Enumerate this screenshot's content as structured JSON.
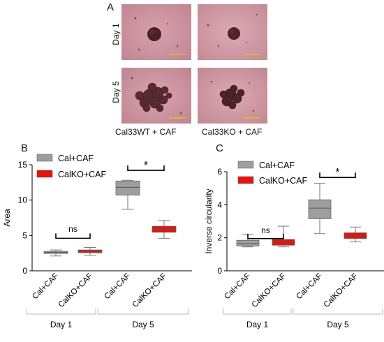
{
  "panels": {
    "a": "A",
    "b": "B",
    "c": "C"
  },
  "micrographs": {
    "row_labels": [
      "Day 1",
      "Day 5"
    ],
    "column_labels": [
      "Cal33WT + CAF",
      "Cal33KO + CAF"
    ]
  },
  "colors": {
    "wt": "#9e9e9e",
    "ko": "#e8120c",
    "micro_bg": "#c98f9b",
    "spheroid": "#4a2127",
    "scale_bar": "#e0c020"
  },
  "chart_data": [
    {
      "type": "box",
      "panel": "B",
      "ylabel": "Area",
      "ylim": [
        0,
        15
      ],
      "yticks": [
        0,
        5,
        10,
        15
      ],
      "legend": [
        "Cal+CAF",
        "CalKO+CAF"
      ],
      "legend_position": "top-left",
      "categories": [
        "Cal+CAF",
        "CalKO+CAF",
        "Cal+CAF",
        "CalKO+CAF"
      ],
      "groups": [
        "Day 1",
        "Day 5"
      ],
      "boxes": [
        {
          "series": "Cal+CAF",
          "group": "Day 1",
          "min": 2.1,
          "q1": 2.45,
          "median": 2.6,
          "q3": 2.75,
          "max": 2.95
        },
        {
          "series": "CalKO+CAF",
          "group": "Day 1",
          "min": 2.2,
          "q1": 2.55,
          "median": 2.75,
          "q3": 2.95,
          "max": 3.3
        },
        {
          "series": "Cal+CAF",
          "group": "Day 5",
          "min": 8.7,
          "q1": 10.7,
          "median": 11.8,
          "q3": 12.7,
          "max": 12.8
        },
        {
          "series": "CalKO+CAF",
          "group": "Day 5",
          "min": 4.6,
          "q1": 5.45,
          "median": 5.9,
          "q3": 6.3,
          "max": 7.1
        }
      ],
      "annotations": [
        {
          "text": "ns",
          "left": 0,
          "right": 1,
          "y": 4.6,
          "label_y": 5.9
        },
        {
          "text": "*",
          "left": 2,
          "right": 3,
          "y": 14.2,
          "label_y": 15.0
        }
      ]
    },
    {
      "type": "box",
      "panel": "C",
      "ylabel": "Inverse circularity",
      "ylim": [
        0,
        6
      ],
      "yticks": [
        0,
        2,
        4,
        6
      ],
      "legend": [
        "Cal+CAF",
        "CalKO+CAF"
      ],
      "legend_position": "top-left",
      "categories": [
        "Cal+CAF",
        "CalKO+CAF",
        "Cal+CAF",
        "CalKO+CAF"
      ],
      "groups": [
        "Day 1",
        "Day 5"
      ],
      "boxes": [
        {
          "series": "Cal+CAF",
          "group": "Day 1",
          "min": 1.45,
          "q1": 1.5,
          "median": 1.65,
          "q3": 1.85,
          "max": 2.2
        },
        {
          "series": "CalKO+CAF",
          "group": "Day 1",
          "min": 1.45,
          "q1": 1.55,
          "median": 1.75,
          "q3": 1.9,
          "max": 2.7
        },
        {
          "series": "Cal+CAF",
          "group": "Day 5",
          "min": 2.25,
          "q1": 3.15,
          "median": 3.8,
          "q3": 4.3,
          "max": 5.3
        },
        {
          "series": "CalKO+CAF",
          "group": "Day 5",
          "min": 1.75,
          "q1": 1.95,
          "median": 2.1,
          "q3": 2.3,
          "max": 2.65
        }
      ],
      "annotations": [
        {
          "text": "ns",
          "left": 0,
          "right": 1,
          "y": 1.95,
          "label_y": 2.45
        },
        {
          "text": "*",
          "left": 2,
          "right": 3,
          "y": 5.65,
          "label_y": 6.0
        }
      ]
    }
  ]
}
